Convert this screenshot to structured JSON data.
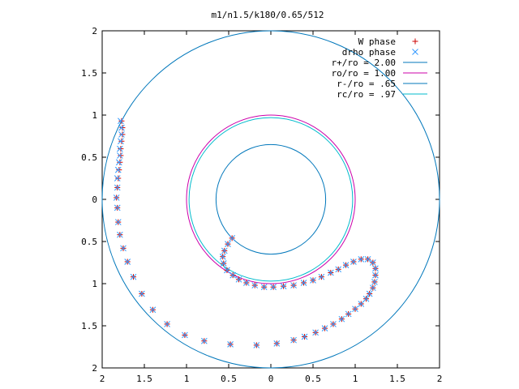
{
  "chart_data": {
    "type": "scatter",
    "title": "m1/n1.5/k180/0.65/512",
    "xlabel": "",
    "ylabel": "",
    "xlim": [
      -2,
      2
    ],
    "ylim": [
      -2,
      2
    ],
    "grid": false,
    "legend_position": "top-right",
    "x_ticks": [
      {
        "value": -2,
        "label": "2"
      },
      {
        "value": -1.5,
        "label": "1.5"
      },
      {
        "value": -1,
        "label": "1"
      },
      {
        "value": -0.5,
        "label": "0.5"
      },
      {
        "value": 0,
        "label": "0"
      },
      {
        "value": 0.5,
        "label": "0.5"
      },
      {
        "value": 1,
        "label": "1"
      },
      {
        "value": 1.5,
        "label": "1.5"
      },
      {
        "value": 2,
        "label": "2"
      }
    ],
    "y_ticks": [
      {
        "value": 2,
        "label": "2"
      },
      {
        "value": 1.5,
        "label": "1.5"
      },
      {
        "value": 1,
        "label": "1"
      },
      {
        "value": 0.5,
        "label": "0.5"
      },
      {
        "value": 0,
        "label": "0"
      },
      {
        "value": -0.5,
        "label": "0.5"
      },
      {
        "value": -1,
        "label": "1"
      },
      {
        "value": -1.5,
        "label": "1.5"
      },
      {
        "value": -2,
        "label": "2"
      }
    ],
    "series": [
      {
        "name": "W phase",
        "marker": "plus",
        "color": "#cc0000",
        "points": [
          [
            -1.77,
            0.93
          ],
          [
            -1.76,
            0.85
          ],
          [
            -1.76,
            0.77
          ],
          [
            -1.77,
            0.69
          ],
          [
            -1.78,
            0.6
          ],
          [
            -1.78,
            0.52
          ],
          [
            -1.79,
            0.44
          ],
          [
            -1.8,
            0.35
          ],
          [
            -1.81,
            0.25
          ],
          [
            -1.82,
            0.14
          ],
          [
            -1.83,
            0.02
          ],
          [
            -1.82,
            -0.1
          ],
          [
            -1.81,
            -0.27
          ],
          [
            -1.79,
            -0.42
          ],
          [
            -1.75,
            -0.58
          ],
          [
            -1.7,
            -0.74
          ],
          [
            -1.63,
            -0.92
          ],
          [
            -1.53,
            -1.12
          ],
          [
            -1.4,
            -1.31
          ],
          [
            -1.23,
            -1.48
          ],
          [
            -1.02,
            -1.61
          ],
          [
            -0.79,
            -1.68
          ],
          [
            -0.48,
            -1.72
          ],
          [
            -0.17,
            -1.73
          ],
          [
            0.07,
            -1.71
          ],
          [
            0.27,
            -1.67
          ],
          [
            0.4,
            -1.63
          ],
          [
            0.53,
            -1.58
          ],
          [
            0.64,
            -1.53
          ],
          [
            0.74,
            -1.48
          ],
          [
            0.84,
            -1.42
          ],
          [
            0.92,
            -1.36
          ],
          [
            1.0,
            -1.3
          ],
          [
            1.07,
            -1.24
          ],
          [
            1.13,
            -1.18
          ],
          [
            1.17,
            -1.12
          ],
          [
            1.21,
            -1.05
          ],
          [
            1.23,
            -0.98
          ],
          [
            1.24,
            -0.9
          ],
          [
            1.24,
            -0.82
          ],
          [
            1.21,
            -0.75
          ],
          [
            1.15,
            -0.71
          ],
          [
            1.07,
            -0.71
          ],
          [
            0.98,
            -0.74
          ],
          [
            0.89,
            -0.78
          ],
          [
            0.8,
            -0.83
          ],
          [
            0.71,
            -0.87
          ],
          [
            0.6,
            -0.92
          ],
          [
            0.5,
            -0.96
          ],
          [
            0.39,
            -0.99
          ],
          [
            0.27,
            -1.02
          ],
          [
            0.15,
            -1.03
          ],
          [
            0.03,
            -1.04
          ],
          [
            -0.08,
            -1.04
          ],
          [
            -0.19,
            -1.02
          ],
          [
            -0.29,
            -0.99
          ],
          [
            -0.38,
            -0.95
          ],
          [
            -0.45,
            -0.9
          ],
          [
            -0.52,
            -0.84
          ],
          [
            -0.56,
            -0.76
          ],
          [
            -0.57,
            -0.68
          ],
          [
            -0.55,
            -0.61
          ],
          [
            -0.51,
            -0.53
          ],
          [
            -0.46,
            -0.46
          ]
        ]
      },
      {
        "name": "drho phase",
        "marker": "cross",
        "color": "#3399ff",
        "points": [
          [
            -1.78,
            0.93
          ],
          [
            -1.77,
            0.85
          ],
          [
            -1.77,
            0.77
          ],
          [
            -1.78,
            0.69
          ],
          [
            -1.79,
            0.6
          ],
          [
            -1.79,
            0.52
          ],
          [
            -1.8,
            0.44
          ],
          [
            -1.81,
            0.35
          ],
          [
            -1.82,
            0.25
          ],
          [
            -1.82,
            0.14
          ],
          [
            -1.83,
            0.02
          ],
          [
            -1.82,
            -0.1
          ],
          [
            -1.81,
            -0.27
          ],
          [
            -1.79,
            -0.42
          ],
          [
            -1.75,
            -0.58
          ],
          [
            -1.7,
            -0.74
          ],
          [
            -1.63,
            -0.92
          ],
          [
            -1.53,
            -1.12
          ],
          [
            -1.4,
            -1.31
          ],
          [
            -1.23,
            -1.48
          ],
          [
            -1.02,
            -1.61
          ],
          [
            -0.79,
            -1.68
          ],
          [
            -0.48,
            -1.72
          ],
          [
            -0.17,
            -1.73
          ],
          [
            0.07,
            -1.71
          ],
          [
            0.27,
            -1.67
          ],
          [
            0.4,
            -1.63
          ],
          [
            0.53,
            -1.58
          ],
          [
            0.64,
            -1.53
          ],
          [
            0.74,
            -1.48
          ],
          [
            0.84,
            -1.42
          ],
          [
            0.92,
            -1.36
          ],
          [
            1.0,
            -1.3
          ],
          [
            1.07,
            -1.24
          ],
          [
            1.13,
            -1.18
          ],
          [
            1.17,
            -1.12
          ],
          [
            1.21,
            -1.05
          ],
          [
            1.23,
            -0.98
          ],
          [
            1.24,
            -0.9
          ],
          [
            1.24,
            -0.82
          ],
          [
            1.21,
            -0.75
          ],
          [
            1.15,
            -0.71
          ],
          [
            1.07,
            -0.71
          ],
          [
            0.98,
            -0.74
          ],
          [
            0.89,
            -0.78
          ],
          [
            0.8,
            -0.83
          ],
          [
            0.71,
            -0.87
          ],
          [
            0.6,
            -0.92
          ],
          [
            0.5,
            -0.96
          ],
          [
            0.39,
            -0.99
          ],
          [
            0.27,
            -1.02
          ],
          [
            0.15,
            -1.03
          ],
          [
            0.03,
            -1.04
          ],
          [
            -0.08,
            -1.04
          ],
          [
            -0.19,
            -1.02
          ],
          [
            -0.29,
            -0.99
          ],
          [
            -0.38,
            -0.95
          ],
          [
            -0.45,
            -0.9
          ],
          [
            -0.52,
            -0.84
          ],
          [
            -0.56,
            -0.76
          ],
          [
            -0.57,
            -0.68
          ],
          [
            -0.55,
            -0.61
          ],
          [
            -0.51,
            -0.53
          ],
          [
            -0.46,
            -0.46
          ]
        ]
      },
      {
        "name": "r+/ro = 2.00",
        "shape": "circle",
        "radius": 2.0,
        "color": "#0077bb"
      },
      {
        "name": "ro/ro = 1.00",
        "shape": "circle",
        "radius": 1.0,
        "color": "#cc00aa"
      },
      {
        "name": "r-/ro = .65",
        "shape": "circle",
        "radius": 0.65,
        "color": "#0077bb"
      },
      {
        "name": "rc/ro = .97",
        "shape": "circle",
        "radius": 0.97,
        "color": "#00bbcc"
      }
    ]
  }
}
